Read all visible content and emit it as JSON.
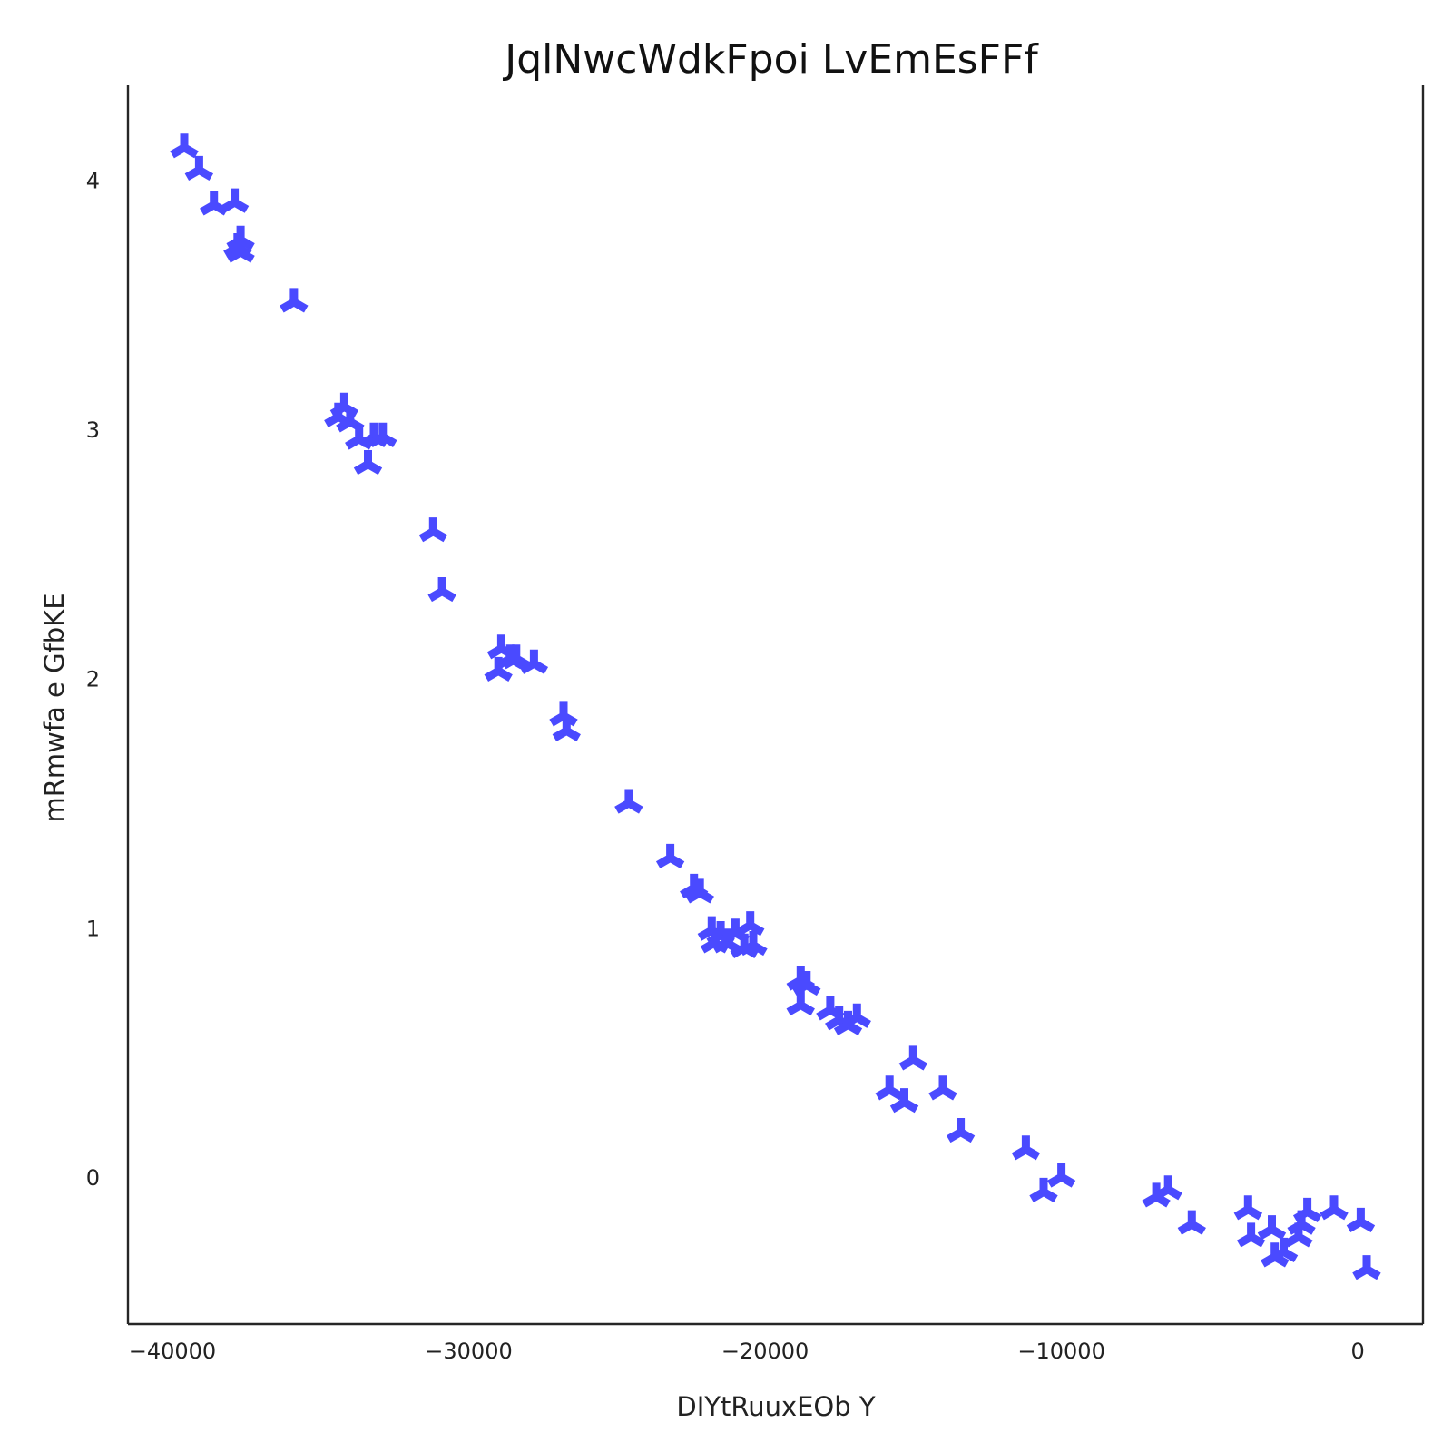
{
  "chart_data": {
    "type": "scatter",
    "title": "JqlNwcWdkFpoi  LvEmEsFFf",
    "xlabel": "DIYtRuuxEOb Y",
    "ylabel": "mRmwfa e GfbKE",
    "xlim": [
      -41500,
      2200
    ],
    "ylim": [
      -0.59,
      4.38
    ],
    "xticks": [
      -40000,
      -30000,
      -20000,
      -10000,
      0
    ],
    "xtick_labels": [
      "−40000",
      "−30000",
      "−20000",
      "−10000",
      "0"
    ],
    "yticks": [
      0,
      1,
      2,
      3,
      4
    ],
    "ytick_labels": [
      "0",
      "1",
      "2",
      "3",
      "4"
    ],
    "grid": false,
    "marker": "tri-star",
    "color": "#4a4aff",
    "series": [
      {
        "x": [
          -39600,
          -39100,
          -38600,
          -37900,
          -37700,
          -37800,
          -37700,
          -35900,
          -34400,
          -34200,
          -34000,
          -33700,
          -33400,
          -33200,
          -32900,
          -31200,
          -30900,
          -29000,
          -28900,
          -28600,
          -28400,
          -27800,
          -26800,
          -26700,
          -24600,
          -23200,
          -22400,
          -22200,
          -21800,
          -21700,
          -21500,
          -21300,
          -21000,
          -20700,
          -20500,
          -20400,
          -18800,
          -18800,
          -18600,
          -17800,
          -17500,
          -17200,
          -16900,
          -15800,
          -15300,
          -15000,
          -14000,
          -13400,
          -11200,
          -10600,
          -10000,
          -6800,
          -6400,
          -5600,
          -3700,
          -3600,
          -2900,
          -2800,
          -2500,
          -2000,
          -1900,
          -1700,
          -800,
          100,
          300
        ],
        "y": [
          4.13,
          4.04,
          3.9,
          3.91,
          3.76,
          3.73,
          3.71,
          3.51,
          3.05,
          3.09,
          3.03,
          2.96,
          2.86,
          2.97,
          2.97,
          2.59,
          2.35,
          2.03,
          2.12,
          2.08,
          2.08,
          2.06,
          1.85,
          1.79,
          1.5,
          1.28,
          1.16,
          1.14,
          0.99,
          0.94,
          0.97,
          0.94,
          0.98,
          0.92,
          1.01,
          0.93,
          0.69,
          0.79,
          0.77,
          0.67,
          0.63,
          0.61,
          0.64,
          0.35,
          0.3,
          0.47,
          0.35,
          0.18,
          0.11,
          -0.06,
          0.0,
          -0.08,
          -0.05,
          -0.19,
          -0.13,
          -0.24,
          -0.21,
          -0.32,
          -0.3,
          -0.24,
          -0.19,
          -0.14,
          -0.13,
          -0.18,
          -0.37
        ]
      }
    ]
  }
}
